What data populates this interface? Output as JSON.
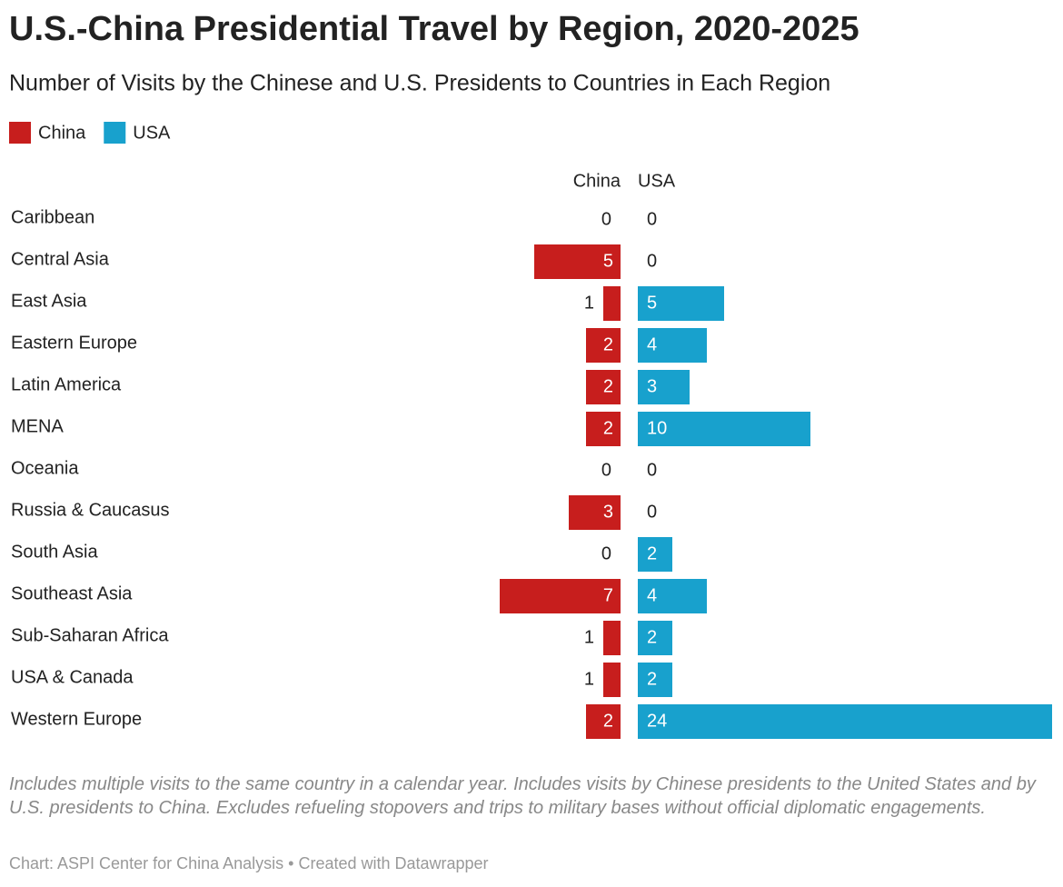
{
  "chart_data": {
    "type": "split-bar",
    "title": "U.S.-China Presidential Travel by Region, 2020-2025",
    "subtitle": "Number of Visits by the Chinese and U.S. Presidents to Countries in Each Region",
    "categories": [
      "Caribbean",
      "Central Asia",
      "East Asia",
      "Eastern Europe",
      "Latin America",
      "MENA",
      "Oceania",
      "Russia & Caucasus",
      "South Asia",
      "Southeast Asia",
      "Sub-Saharan Africa",
      "USA & Canada",
      "Western Europe"
    ],
    "series": [
      {
        "name": "China",
        "color": "#c71e1d",
        "values": [
          0,
          5,
          1,
          2,
          2,
          2,
          0,
          3,
          0,
          7,
          1,
          1,
          2
        ]
      },
      {
        "name": "USA",
        "color": "#18a1cd",
        "values": [
          0,
          0,
          5,
          4,
          3,
          10,
          0,
          0,
          2,
          4,
          2,
          2,
          24
        ]
      }
    ],
    "notes": "Includes multiple visits to the same country in a calendar year. Includes visits by Chinese presidents to the United States and by U.S. presidents to China. Excludes refueling stopovers and trips to military bases without official diplomatic engagements.",
    "source": "Chart: ASPI Center for China Analysis • Created with Datawrapper"
  }
}
